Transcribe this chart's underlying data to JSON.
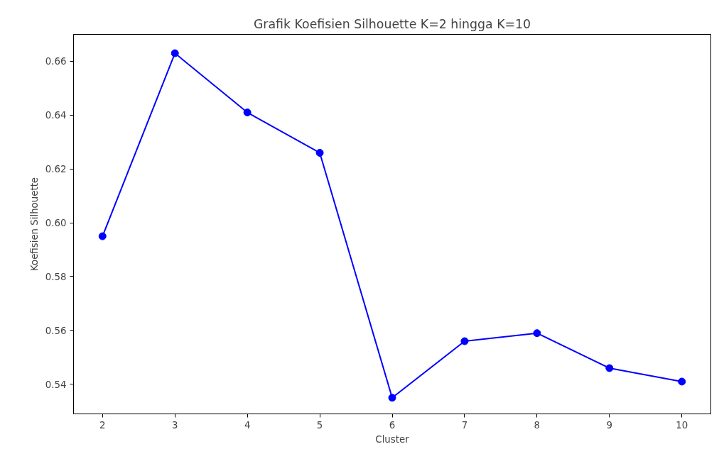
{
  "chart_data": {
    "type": "line",
    "title": "Grafik Koefisien Silhouette K=2 hingga K=10",
    "xlabel": "Cluster",
    "ylabel": "Koefisien Silhouette",
    "x": [
      2,
      3,
      4,
      5,
      6,
      7,
      8,
      9,
      10
    ],
    "series": [
      {
        "color": "#0000ff",
        "values": [
          0.595,
          0.663,
          0.641,
          0.626,
          0.535,
          0.556,
          0.559,
          0.546,
          0.541
        ]
      }
    ],
    "xlim": [
      1.6,
      10.4
    ],
    "xticks": [
      2,
      3,
      4,
      5,
      6,
      7,
      8,
      9,
      10
    ],
    "ylim": [
      0.529,
      0.67
    ],
    "yticks": [
      0.54,
      0.56,
      0.58,
      {
        "value": 0.6,
        "label": "0.60"
      },
      0.62,
      0.64,
      0.66
    ],
    "marker": "circle",
    "line_style": "solid",
    "grid": false
  }
}
